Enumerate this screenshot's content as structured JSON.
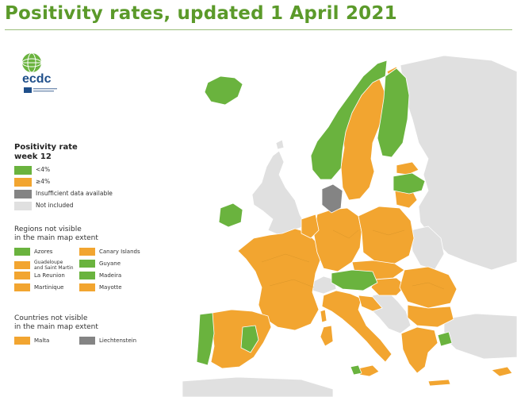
{
  "title": "Positivity rates, updated 1 April 2021",
  "colors": {
    "low": "#6ab33e",
    "high": "#f2a530",
    "insufficient": "#848484",
    "not_included": "#e0e0e0",
    "sea": "#ffffff",
    "title": "#5b9a2a"
  },
  "logo": {
    "text": "ecdc"
  },
  "legend": {
    "title_line1": "Positivity rate",
    "title_line2": "week 12",
    "items": [
      {
        "label": "<4%",
        "color": "#6ab33e"
      },
      {
        "label": "≥4%",
        "color": "#f2a530"
      },
      {
        "label": "Insufficient data available",
        "color": "#848484"
      },
      {
        "label": "Not included",
        "color": "#e0e0e0"
      }
    ]
  },
  "regions": {
    "title_line1": "Regions not visible",
    "title_line2": "in the main map extent",
    "items": [
      {
        "label": "Azores",
        "color": "#6ab33e"
      },
      {
        "label": "Canary Islands",
        "color": "#f2a530"
      },
      {
        "label_line1": "Guadeloupe",
        "label_line2": "and Saint Martin",
        "color": "#f2a530"
      },
      {
        "label": "Guyane",
        "color": "#6ab33e"
      },
      {
        "label": "La Reunion",
        "color": "#f2a530"
      },
      {
        "label": "Madeira",
        "color": "#6ab33e"
      },
      {
        "label": "Martinique",
        "color": "#f2a530"
      },
      {
        "label": "Mayotte",
        "color": "#f2a530"
      }
    ]
  },
  "countries": {
    "title_line1": "Countries not visible",
    "title_line2": "in the main map extent",
    "items": [
      {
        "label": "Malta",
        "color": "#f2a530"
      },
      {
        "label": "Liechtenstein",
        "color": "#848484"
      }
    ]
  }
}
